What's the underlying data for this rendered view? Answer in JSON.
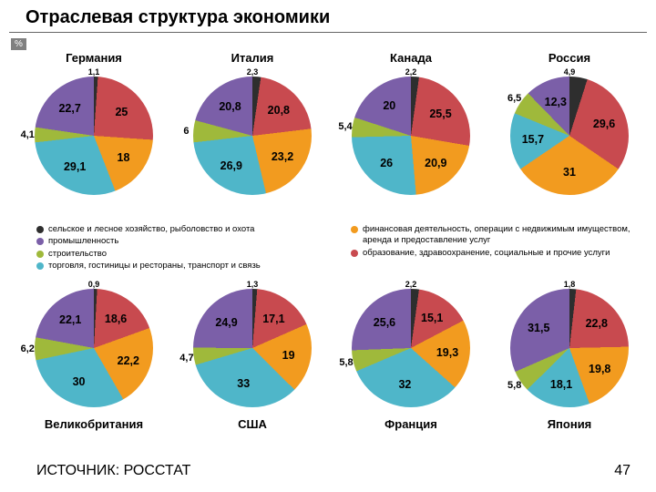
{
  "title": "Отраслевая структура экономики",
  "pct_badge": "%",
  "source": "ИСТОЧНИК: РОССТАТ",
  "page_number": "47",
  "sectors": {
    "agri": {
      "color": "#2e2e2e",
      "label": "сельское и лесное хозяйство, рыболовство и охота"
    },
    "indus": {
      "color": "#7b5fa8",
      "label": "промышленность"
    },
    "constr": {
      "color": "#9fb93b",
      "label": "строительство"
    },
    "trade": {
      "color": "#4fb6c9",
      "label": "торговля, гостиницы и рестораны, транспорт и связь"
    },
    "finance": {
      "color": "#f29b1f",
      "label": "финансовая деятельность, операции с недвижимым имуществом, аренда и предоставление услуг"
    },
    "edu": {
      "color": "#c84a4f",
      "label": "образование, здравоохранение, социальные и прочие услуги"
    }
  },
  "top_row": [
    {
      "name": "Германия",
      "agri": 1.1,
      "indus": 22.7,
      "constr": 4.1,
      "trade": 29.1,
      "finance": 18.0,
      "edu": 25.0
    },
    {
      "name": "Италия",
      "agri": 2.3,
      "indus": 20.8,
      "constr": 6.0,
      "trade": 26.9,
      "finance": 23.2,
      "edu": 20.8
    },
    {
      "name": "Канада",
      "agri": 2.2,
      "indus": 20.0,
      "constr": 5.4,
      "trade": 26.0,
      "finance": 20.9,
      "edu": 25.5
    },
    {
      "name": "Россия",
      "agri": 4.9,
      "indus": 12.3,
      "constr": 6.5,
      "trade": 15.7,
      "finance": 31.0,
      "edu": 29.6
    }
  ],
  "bottom_row": [
    {
      "name": "Великобритания",
      "agri": 0.9,
      "indus": 22.1,
      "constr": 6.2,
      "trade": 30.0,
      "finance": 22.2,
      "edu": 18.6
    },
    {
      "name": "США",
      "agri": 1.3,
      "indus": 24.9,
      "constr": 4.7,
      "trade": 33.0,
      "finance": 19.0,
      "edu": 17.1
    },
    {
      "name": "Франция",
      "agri": 2.2,
      "indus": 25.6,
      "constr": 5.8,
      "trade": 32.0,
      "finance": 19.3,
      "edu": 15.1
    },
    {
      "name": "Япония",
      "agri": 1.8,
      "indus": 31.5,
      "constr": 5.8,
      "trade": 18.1,
      "finance": 19.8,
      "edu": 22.8
    }
  ],
  "layout": {
    "chart_left_positions": [
      18,
      192,
      366,
      540
    ],
    "label_fontsize": 12.5,
    "label_radius_inner": 0.62,
    "label_radius_outer": 0.8,
    "big_threshold": 8
  }
}
